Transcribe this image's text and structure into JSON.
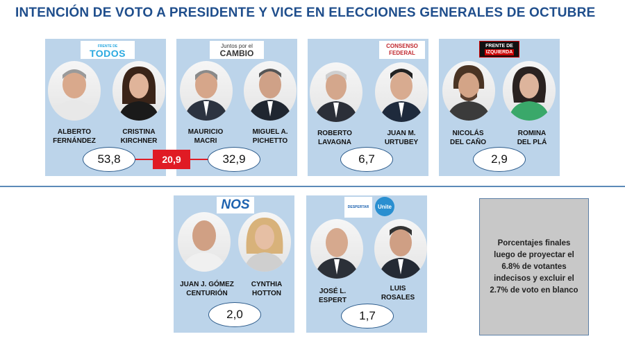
{
  "title": "INTENCIÓN DE VOTO A PRESIDENTE Y VICE EN ELECCIONES GENERALES DE OCTUBRE",
  "gap_value": "20,9",
  "note": "Porcentajes finales luego de proyectar el 6.8% de votantes indecisos y excluir el 2.7% de voto en blanco",
  "colors": {
    "card_bg": "#bcd4ea",
    "title": "#1f4e8c",
    "gap": "#e01b24"
  },
  "parties": [
    {
      "logo_top": "FRENTE DE",
      "logo": "TODOS",
      "candidates": [
        {
          "line1": "ALBERTO",
          "line2": "FERNÁNDEZ"
        },
        {
          "line1": "CRISTINA",
          "line2": "KIRCHNER"
        }
      ],
      "pct": "53,8"
    },
    {
      "logo_top": "Juntos por el",
      "logo": "CAMBIO",
      "candidates": [
        {
          "line1": "MAURICIO",
          "line2": "MACRI"
        },
        {
          "line1": "MIGUEL A.",
          "line2": "PICHETTO"
        }
      ],
      "pct": "32,9"
    },
    {
      "logo_top": "CONSENSO",
      "logo": "FEDERAL",
      "candidates": [
        {
          "line1": "ROBERTO",
          "line2": "LAVAGNA"
        },
        {
          "line1": "JUAN M.",
          "line2": "URTUBEY"
        }
      ],
      "pct": "6,7"
    },
    {
      "logo_top": "FRENTE DE",
      "logo": "IZQUIERDA",
      "candidates": [
        {
          "line1": "NICOLÁS",
          "line2": "DEL CAÑO"
        },
        {
          "line1": "ROMINA",
          "line2": "DEL PLÁ"
        }
      ],
      "pct": "2,9"
    },
    {
      "logo_top": "",
      "logo": "NOS",
      "candidates": [
        {
          "line1": "JUAN J. GÓMEZ",
          "line2": "CENTURIÓN"
        },
        {
          "line1": "CYNTHIA",
          "line2": "HOTTON"
        }
      ],
      "pct": "2,0"
    },
    {
      "logo_top": "DESPERTAR",
      "logo": "Unite",
      "candidates": [
        {
          "line1": "JOSÉ L.",
          "line2": "ESPERT"
        },
        {
          "line1": "LUIS",
          "line2": "ROSALES"
        }
      ],
      "pct": "1,7"
    }
  ]
}
